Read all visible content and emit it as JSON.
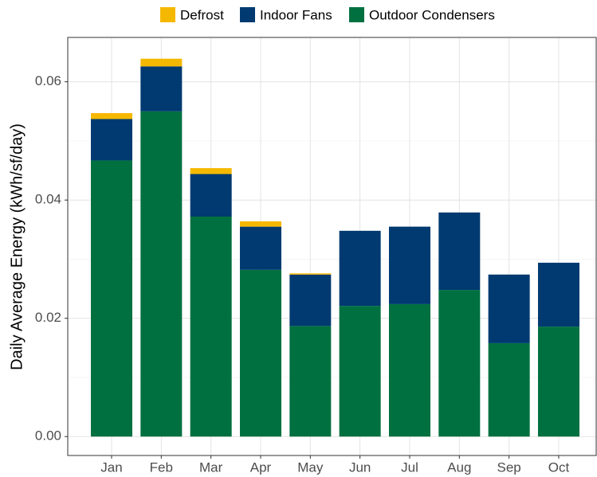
{
  "chart_data": {
    "type": "stacked_bar",
    "y_label": "Daily Average Energy (kWh/sf/day)",
    "categories": [
      "Jan",
      "Feb",
      "Mar",
      "Apr",
      "May",
      "Jun",
      "Jul",
      "Aug",
      "Sep",
      "Oct"
    ],
    "series": [
      {
        "name": "Defrost",
        "color": "#f5b800",
        "values": [
          0.001,
          0.0013,
          0.001,
          0.0009,
          0.0002,
          0,
          0,
          0,
          0,
          0
        ]
      },
      {
        "name": "Indoor Fans",
        "color": "#003a70",
        "values": [
          0.007,
          0.0076,
          0.0072,
          0.0073,
          0.0087,
          0.0127,
          0.0131,
          0.0131,
          0.0116,
          0.0108
        ]
      },
      {
        "name": "Outdoor Condensers",
        "color": "#007040",
        "values": [
          0.0467,
          0.055,
          0.0372,
          0.0282,
          0.0187,
          0.0221,
          0.0224,
          0.0248,
          0.0158,
          0.0186
        ]
      }
    ],
    "ylim": [
      -0.0032,
      0.0675
    ],
    "yticks": [
      {
        "value": 0,
        "label": "0.00"
      },
      {
        "value": 0.02,
        "label": "0.02"
      },
      {
        "value": 0.04,
        "label": "0.04"
      },
      {
        "value": 0.06,
        "label": "0.06"
      }
    ],
    "grid": true
  }
}
